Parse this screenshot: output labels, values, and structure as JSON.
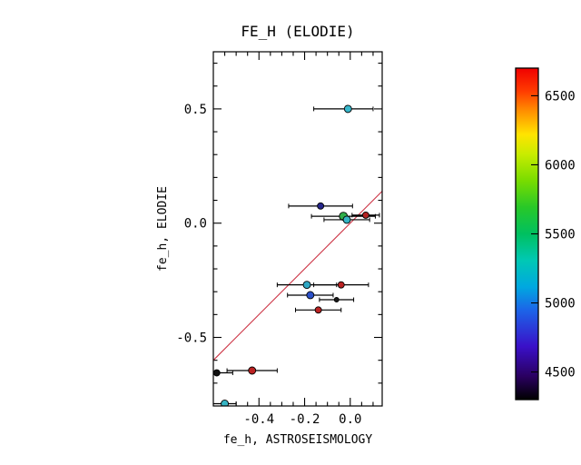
{
  "chart_data": {
    "type": "scatter",
    "title": "FE_H (ELODIE)",
    "xlabel": "fe_h, ASTROSEISMOLOGY",
    "ylabel": "fe_h, ELODIE",
    "xlim": [
      -0.6,
      0.14
    ],
    "ylim": [
      -0.8,
      0.75
    ],
    "grid": false,
    "x_ticks": [
      {
        "value": -0.4,
        "label": "-0.4"
      },
      {
        "value": -0.2,
        "label": "-0.2"
      },
      {
        "value": 0.0,
        "label": "0.0"
      }
    ],
    "y_ticks": [
      {
        "value": 0.5,
        "label": "0.5"
      },
      {
        "value": 0.0,
        "label": "0.0"
      },
      {
        "value": -0.5,
        "label": "-0.5"
      }
    ],
    "x_minor_step": 0.05,
    "y_minor_step": 0.1,
    "identity_line": {
      "slope": 1,
      "intercept": 0,
      "color": "#cc3344"
    },
    "points": [
      {
        "x": -0.01,
        "y": 0.5,
        "xerr_minus": 0.15,
        "xerr_plus": 0.11,
        "color": "#38b8cc",
        "size": 4
      },
      {
        "x": -0.13,
        "y": 0.075,
        "xerr_minus": 0.14,
        "xerr_plus": 0.14,
        "color": "#26268c",
        "size": 3.5
      },
      {
        "x": -0.03,
        "y": 0.03,
        "xerr_minus": 0.14,
        "xerr_plus": 0.14,
        "color": "#2fae4a",
        "size": 4.5
      },
      {
        "x": -0.015,
        "y": 0.015,
        "xerr_minus": 0.1,
        "xerr_plus": 0.1,
        "color": "#35b4c4",
        "size": 4
      },
      {
        "x": 0.068,
        "y": 0.035,
        "xerr_minus": 0.06,
        "xerr_plus": 0.06,
        "color": "#b22222",
        "size": 3.5
      },
      {
        "x": -0.19,
        "y": -0.27,
        "xerr_minus": 0.13,
        "xerr_plus": 0.13,
        "color": "#30a8c4",
        "size": 4
      },
      {
        "x": -0.175,
        "y": -0.315,
        "xerr_minus": 0.1,
        "xerr_plus": 0.1,
        "color": "#2b50c8",
        "size": 4
      },
      {
        "x": -0.04,
        "y": -0.27,
        "xerr_minus": 0.12,
        "xerr_plus": 0.12,
        "color": "#bb2222",
        "size": 3.5
      },
      {
        "x": -0.06,
        "y": -0.335,
        "xerr_minus": 0.075,
        "xerr_plus": 0.075,
        "color": "#1a1a1a",
        "size": 2.5
      },
      {
        "x": -0.14,
        "y": -0.38,
        "xerr_minus": 0.1,
        "xerr_plus": 0.1,
        "color": "#bb2222",
        "size": 3.5
      },
      {
        "x": -0.43,
        "y": -0.645,
        "xerr_minus": 0.11,
        "xerr_plus": 0.11,
        "color": "#bb2222",
        "size": 4
      },
      {
        "x": -0.585,
        "y": -0.655,
        "xerr_minus": 0.05,
        "xerr_plus": 0.07,
        "color": "#111111",
        "size": 3.5
      },
      {
        "x": -0.55,
        "y": -0.79,
        "xerr_minus": 0.05,
        "xerr_plus": 0.05,
        "color": "#35b4c4",
        "size": 4
      }
    ],
    "colorbar": {
      "min": 4300,
      "max": 6700,
      "ticks": [
        {
          "value": 4500,
          "label": "4500"
        },
        {
          "value": 5000,
          "label": "5000"
        },
        {
          "value": 5500,
          "label": "5500"
        },
        {
          "value": 6000,
          "label": "6000"
        },
        {
          "value": 6500,
          "label": "6500"
        }
      ],
      "gradient": [
        {
          "pos": 0.0,
          "color": "#000000"
        },
        {
          "pos": 0.07,
          "color": "#2a0060"
        },
        {
          "pos": 0.16,
          "color": "#3a10c8"
        },
        {
          "pos": 0.27,
          "color": "#1c64e8"
        },
        {
          "pos": 0.34,
          "color": "#00a8e0"
        },
        {
          "pos": 0.42,
          "color": "#00c8b4"
        },
        {
          "pos": 0.5,
          "color": "#00c060"
        },
        {
          "pos": 0.58,
          "color": "#28c828"
        },
        {
          "pos": 0.66,
          "color": "#78dc00"
        },
        {
          "pos": 0.74,
          "color": "#c8ec00"
        },
        {
          "pos": 0.8,
          "color": "#ffe400"
        },
        {
          "pos": 0.87,
          "color": "#ff9000"
        },
        {
          "pos": 0.93,
          "color": "#ff3c00"
        },
        {
          "pos": 1.0,
          "color": "#f00000"
        }
      ]
    }
  }
}
